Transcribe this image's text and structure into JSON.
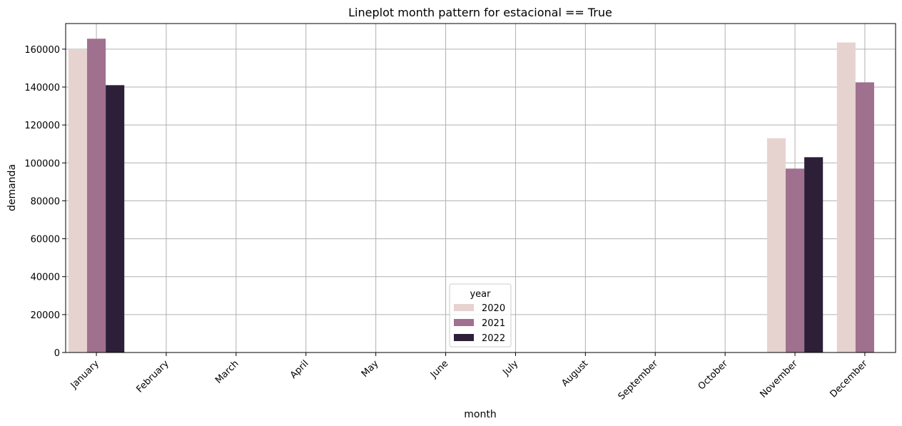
{
  "chart_data": {
    "type": "bar",
    "title": "Lineplot month pattern for estacional == True",
    "xlabel": "month",
    "ylabel": "demanda",
    "categories": [
      "January",
      "February",
      "March",
      "April",
      "May",
      "June",
      "July",
      "August",
      "September",
      "October",
      "November",
      "December"
    ],
    "y_ticks": [
      0,
      20000,
      40000,
      60000,
      80000,
      100000,
      120000,
      140000,
      160000
    ],
    "ylim": [
      0,
      173500
    ],
    "grid": true,
    "legend": {
      "title": "year",
      "placement": "bottom-center"
    },
    "series": [
      {
        "name": "2020",
        "color": "#e6d3cf",
        "values": [
          160000,
          null,
          null,
          null,
          null,
          null,
          null,
          null,
          null,
          null,
          113000,
          163500
        ]
      },
      {
        "name": "2021",
        "color": "#a0708f",
        "values": [
          165500,
          null,
          null,
          null,
          null,
          null,
          null,
          null,
          null,
          null,
          97000,
          142500
        ]
      },
      {
        "name": "2022",
        "color": "#2d1f38",
        "values": [
          141000,
          null,
          null,
          null,
          null,
          null,
          null,
          null,
          null,
          null,
          103000,
          null
        ]
      }
    ]
  }
}
